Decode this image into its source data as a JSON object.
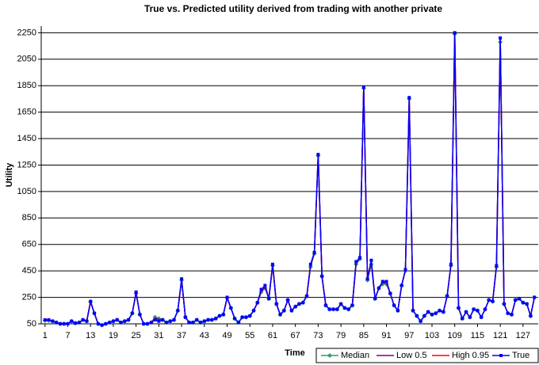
{
  "chart_data": {
    "type": "line",
    "title": "True vs. Predicted utility derived from trading with another private",
    "x_label": "Time",
    "y_label": "Utility",
    "xlim": [
      0,
      131
    ],
    "xticks": [
      1,
      7,
      13,
      19,
      25,
      31,
      37,
      43,
      49,
      55,
      61,
      67,
      73,
      79,
      85,
      91,
      97,
      103,
      109,
      115,
      121,
      127
    ],
    "ylim": [
      50,
      2300
    ],
    "yticks": [
      50,
      250,
      450,
      650,
      850,
      1050,
      1250,
      1450,
      1650,
      1850,
      2050,
      2250
    ],
    "grid": true,
    "legend": "bottom-right",
    "x": [
      1,
      2,
      3,
      4,
      5,
      6,
      7,
      8,
      9,
      10,
      11,
      12,
      13,
      14,
      15,
      16,
      17,
      18,
      19,
      20,
      21,
      22,
      23,
      24,
      25,
      26,
      27,
      28,
      29,
      30,
      31,
      32,
      33,
      34,
      35,
      36,
      37,
      38,
      39,
      40,
      41,
      42,
      43,
      44,
      45,
      46,
      47,
      48,
      49,
      50,
      51,
      52,
      53,
      54,
      55,
      56,
      57,
      58,
      59,
      60,
      61,
      62,
      63,
      64,
      65,
      66,
      67,
      68,
      69,
      70,
      71,
      72,
      73,
      74,
      75,
      76,
      77,
      78,
      79,
      80,
      81,
      82,
      83,
      84,
      85,
      86,
      87,
      88,
      89,
      90,
      91,
      92,
      93,
      94,
      95,
      96,
      97,
      98,
      99,
      100,
      101,
      102,
      103,
      104,
      105,
      106,
      107,
      108,
      109,
      110,
      111,
      112,
      113,
      114,
      115,
      116,
      117,
      118,
      119,
      120,
      121,
      122,
      123,
      124,
      125,
      126,
      127,
      128,
      129,
      130
    ],
    "series": [
      {
        "name": "Median",
        "color": "#339966",
        "marker": "diamond",
        "values": [
          75,
          75,
          70,
          60,
          50,
          50,
          50,
          70,
          55,
          60,
          80,
          70,
          215,
          130,
          50,
          40,
          50,
          60,
          70,
          80,
          60,
          70,
          80,
          130,
          280,
          120,
          50,
          50,
          60,
          100,
          90,
          80,
          60,
          70,
          80,
          150,
          380,
          100,
          60,
          60,
          80,
          60,
          70,
          80,
          80,
          90,
          110,
          120,
          245,
          170,
          90,
          60,
          100,
          100,
          110,
          150,
          210,
          290,
          320,
          240,
          490,
          200,
          120,
          150,
          230,
          150,
          180,
          200,
          210,
          260,
          480,
          580,
          1320,
          410,
          190,
          160,
          160,
          160,
          200,
          170,
          160,
          190,
          500,
          540,
          1830,
          380,
          500,
          240,
          320,
          350,
          350,
          280,
          190,
          150,
          340,
          450,
          1750,
          150,
          110,
          70,
          110,
          140,
          120,
          130,
          150,
          140,
          260,
          490,
          2240,
          170,
          90,
          140,
          100,
          160,
          150,
          100,
          160,
          230,
          220,
          480,
          2180,
          200,
          130,
          120,
          230,
          240,
          210,
          200,
          110,
          250
        ]
      },
      {
        "name": "Low 0.5",
        "color": "#800080",
        "marker": null,
        "values": [
          75,
          75,
          70,
          60,
          50,
          50,
          50,
          70,
          55,
          60,
          80,
          70,
          215,
          130,
          50,
          40,
          50,
          60,
          70,
          80,
          60,
          70,
          80,
          130,
          280,
          120,
          50,
          50,
          60,
          95,
          85,
          80,
          60,
          70,
          80,
          150,
          380,
          100,
          60,
          60,
          80,
          60,
          70,
          80,
          80,
          90,
          110,
          120,
          245,
          170,
          90,
          60,
          100,
          100,
          110,
          150,
          210,
          295,
          325,
          240,
          495,
          200,
          120,
          150,
          230,
          150,
          180,
          200,
          210,
          260,
          490,
          585,
          1325,
          410,
          190,
          160,
          160,
          160,
          200,
          170,
          160,
          190,
          510,
          545,
          1835,
          385,
          515,
          240,
          320,
          360,
          360,
          280,
          190,
          150,
          340,
          455,
          1755,
          150,
          110,
          70,
          110,
          140,
          120,
          130,
          150,
          140,
          260,
          495,
          2245,
          170,
          90,
          140,
          100,
          160,
          150,
          100,
          160,
          230,
          220,
          485,
          2195,
          200,
          130,
          120,
          230,
          240,
          210,
          200,
          110,
          250
        ]
      },
      {
        "name": "High 0.95",
        "color": "#ff0000",
        "marker": null,
        "values": [
          80,
          80,
          70,
          60,
          50,
          50,
          50,
          70,
          55,
          60,
          80,
          70,
          220,
          130,
          50,
          40,
          50,
          60,
          70,
          80,
          60,
          70,
          80,
          130,
          285,
          120,
          50,
          50,
          60,
          90,
          80,
          80,
          60,
          70,
          80,
          150,
          385,
          100,
          60,
          60,
          80,
          60,
          70,
          80,
          80,
          90,
          110,
          120,
          250,
          170,
          90,
          60,
          100,
          100,
          110,
          150,
          210,
          305,
          335,
          240,
          500,
          200,
          120,
          150,
          230,
          150,
          180,
          200,
          210,
          260,
          495,
          590,
          1330,
          410,
          190,
          160,
          160,
          160,
          200,
          170,
          160,
          190,
          515,
          550,
          1840,
          390,
          525,
          240,
          320,
          370,
          370,
          280,
          190,
          150,
          340,
          460,
          1760,
          150,
          110,
          70,
          110,
          140,
          120,
          130,
          150,
          140,
          260,
          500,
          2250,
          170,
          90,
          140,
          100,
          160,
          150,
          100,
          160,
          230,
          220,
          490,
          2205,
          200,
          130,
          120,
          230,
          240,
          210,
          200,
          110,
          250
        ]
      },
      {
        "name": "True",
        "color": "#0000ff",
        "marker": "square",
        "values": [
          80,
          80,
          70,
          60,
          50,
          50,
          50,
          70,
          55,
          60,
          80,
          70,
          220,
          130,
          50,
          40,
          50,
          60,
          70,
          80,
          60,
          70,
          80,
          130,
          290,
          120,
          50,
          50,
          60,
          80,
          70,
          80,
          60,
          70,
          80,
          150,
          390,
          100,
          60,
          60,
          80,
          60,
          70,
          80,
          80,
          90,
          110,
          120,
          250,
          170,
          90,
          60,
          100,
          100,
          110,
          150,
          210,
          310,
          340,
          240,
          500,
          200,
          120,
          150,
          230,
          150,
          180,
          200,
          210,
          260,
          500,
          590,
          1330,
          410,
          190,
          160,
          160,
          160,
          200,
          170,
          160,
          190,
          520,
          550,
          1840,
          390,
          530,
          240,
          320,
          370,
          370,
          280,
          190,
          150,
          340,
          460,
          1760,
          150,
          110,
          70,
          110,
          140,
          120,
          130,
          150,
          140,
          260,
          500,
          2250,
          170,
          90,
          140,
          100,
          160,
          150,
          100,
          160,
          230,
          220,
          490,
          2210,
          200,
          130,
          120,
          230,
          240,
          210,
          200,
          110,
          250
        ]
      }
    ]
  }
}
